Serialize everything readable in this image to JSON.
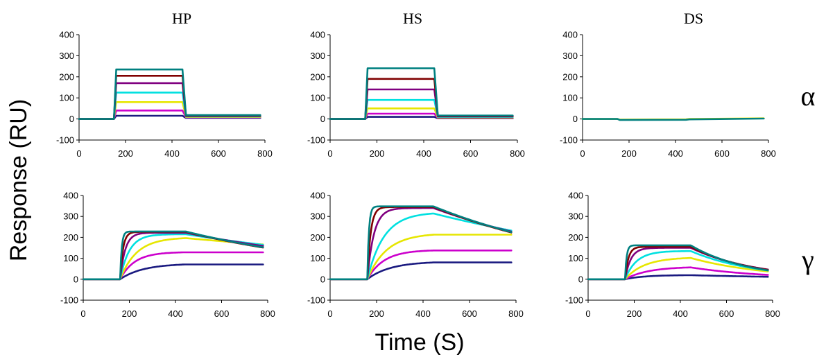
{
  "figure": {
    "ylabel": "Response (RU)",
    "xlabel": "Time (S)",
    "column_titles": [
      "HP",
      "HS",
      "DS"
    ],
    "row_labels": [
      "α",
      "γ"
    ]
  },
  "colors": {
    "axis": "#000000",
    "series_palette": [
      "#1a1a80",
      "#cc00cc",
      "#e6e600",
      "#00e0e0",
      "#800080",
      "#800000",
      "#008080"
    ]
  },
  "chart_data": [
    {
      "type": "line",
      "panel": "alpha-HP",
      "xlim": [
        0,
        800
      ],
      "ylim": [
        -100,
        400
      ],
      "xticks": [
        0,
        200,
        400,
        600,
        800
      ],
      "yticks": [
        -100,
        0,
        100,
        200,
        300,
        400
      ],
      "model": "square",
      "x": [
        0,
        150,
        160,
        445,
        460,
        780
      ],
      "series": [
        {
          "color": "#1a1a80",
          "values": [
            0,
            0,
            15,
            15,
            5,
            5
          ]
        },
        {
          "color": "#cc00cc",
          "values": [
            0,
            0,
            40,
            40,
            8,
            8
          ]
        },
        {
          "color": "#e6e600",
          "values": [
            0,
            0,
            80,
            80,
            10,
            10
          ]
        },
        {
          "color": "#00e0e0",
          "values": [
            0,
            0,
            125,
            125,
            12,
            12
          ]
        },
        {
          "color": "#800080",
          "values": [
            0,
            0,
            170,
            170,
            14,
            14
          ]
        },
        {
          "color": "#800000",
          "values": [
            0,
            0,
            205,
            205,
            15,
            15
          ]
        },
        {
          "color": "#008080",
          "values": [
            0,
            0,
            235,
            235,
            18,
            18
          ]
        }
      ]
    },
    {
      "type": "line",
      "panel": "alpha-HS",
      "xlim": [
        0,
        800
      ],
      "ylim": [
        -100,
        400
      ],
      "xticks": [
        0,
        200,
        400,
        600,
        800
      ],
      "yticks": [
        -100,
        0,
        100,
        200,
        300,
        400
      ],
      "model": "square",
      "x": [
        0,
        150,
        160,
        445,
        460,
        780
      ],
      "series": [
        {
          "color": "#1a1a80",
          "values": [
            0,
            0,
            10,
            10,
            3,
            3
          ]
        },
        {
          "color": "#cc00cc",
          "values": [
            0,
            0,
            25,
            25,
            5,
            5
          ]
        },
        {
          "color": "#e6e600",
          "values": [
            0,
            0,
            50,
            50,
            7,
            7
          ]
        },
        {
          "color": "#00e0e0",
          "values": [
            0,
            0,
            90,
            90,
            10,
            10
          ]
        },
        {
          "color": "#800080",
          "values": [
            0,
            0,
            140,
            140,
            12,
            12
          ]
        },
        {
          "color": "#800000",
          "values": [
            0,
            0,
            190,
            190,
            14,
            14
          ]
        },
        {
          "color": "#008080",
          "values": [
            0,
            0,
            240,
            240,
            16,
            16
          ]
        }
      ]
    },
    {
      "type": "line",
      "panel": "alpha-DS",
      "xlim": [
        0,
        800
      ],
      "ylim": [
        -100,
        400
      ],
      "xticks": [
        0,
        200,
        400,
        600,
        800
      ],
      "yticks": [
        -100,
        0,
        100,
        200,
        300,
        400
      ],
      "model": "square",
      "x": [
        0,
        150,
        160,
        445,
        460,
        780
      ],
      "series": [
        {
          "color": "#e6e600",
          "values": [
            0,
            0,
            -3,
            -2,
            0,
            3
          ]
        },
        {
          "color": "#008080",
          "values": [
            0,
            0,
            -5,
            -4,
            -2,
            2
          ]
        }
      ]
    },
    {
      "type": "line",
      "panel": "gamma-HP",
      "xlim": [
        0,
        800
      ],
      "ylim": [
        -100,
        400
      ],
      "xticks": [
        0,
        200,
        400,
        600,
        800
      ],
      "yticks": [
        -100,
        0,
        100,
        200,
        300,
        400
      ],
      "model": "kinetic",
      "t_on": 160,
      "t_off": 445,
      "t_end": 780,
      "series": [
        {
          "color": "#1a1a80",
          "req": 75,
          "kon": 0.01,
          "koff": 0.0
        },
        {
          "color": "#cc00cc",
          "req": 130,
          "kon": 0.016,
          "koff": 0.0
        },
        {
          "color": "#e6e600",
          "req": 200,
          "kon": 0.014,
          "koff": 0.0005
        },
        {
          "color": "#00e0e0",
          "req": 215,
          "kon": 0.025,
          "koff": 0.0008
        },
        {
          "color": "#800080",
          "req": 222,
          "kon": 0.045,
          "koff": 0.001
        },
        {
          "color": "#800000",
          "req": 226,
          "kon": 0.08,
          "koff": 0.0012
        },
        {
          "color": "#008080",
          "req": 228,
          "kon": 0.15,
          "koff": 0.0012
        }
      ]
    },
    {
      "type": "line",
      "panel": "gamma-HS",
      "xlim": [
        0,
        800
      ],
      "ylim": [
        -100,
        400
      ],
      "xticks": [
        0,
        200,
        400,
        600,
        800
      ],
      "yticks": [
        -100,
        0,
        100,
        200,
        300,
        400
      ],
      "model": "kinetic",
      "t_on": 160,
      "t_off": 445,
      "t_end": 780,
      "series": [
        {
          "color": "#1a1a80",
          "req": 85,
          "kon": 0.01,
          "koff": 0.0
        },
        {
          "color": "#cc00cc",
          "req": 140,
          "kon": 0.014,
          "koff": 0.0
        },
        {
          "color": "#e6e600",
          "req": 220,
          "kon": 0.012,
          "koff": 0.0
        },
        {
          "color": "#00e0e0",
          "req": 320,
          "kon": 0.014,
          "koff": 0.0009
        },
        {
          "color": "#800080",
          "req": 340,
          "kon": 0.035,
          "koff": 0.0012
        },
        {
          "color": "#800000",
          "req": 345,
          "kon": 0.07,
          "koff": 0.0013
        },
        {
          "color": "#008080",
          "req": 348,
          "kon": 0.15,
          "koff": 0.0013
        }
      ]
    },
    {
      "type": "line",
      "panel": "gamma-DS",
      "xlim": [
        0,
        800
      ],
      "ylim": [
        -100,
        400
      ],
      "xticks": [
        0,
        200,
        400,
        600,
        800
      ],
      "yticks": [
        -100,
        0,
        100,
        200,
        300,
        400
      ],
      "model": "kinetic",
      "t_on": 160,
      "t_off": 445,
      "t_end": 780,
      "series": [
        {
          "color": "#1a1a80",
          "req": 20,
          "kon": 0.012,
          "koff": 0.0015
        },
        {
          "color": "#cc00cc",
          "req": 60,
          "kon": 0.01,
          "koff": 0.003
        },
        {
          "color": "#e6e600",
          "req": 105,
          "kon": 0.012,
          "koff": 0.003
        },
        {
          "color": "#00e0e0",
          "req": 135,
          "kon": 0.02,
          "koff": 0.0035
        },
        {
          "color": "#800080",
          "req": 150,
          "kon": 0.04,
          "koff": 0.0035
        },
        {
          "color": "#800000",
          "req": 155,
          "kon": 0.07,
          "koff": 0.0037
        },
        {
          "color": "#008080",
          "req": 162,
          "kon": 0.15,
          "koff": 0.004
        }
      ]
    }
  ]
}
